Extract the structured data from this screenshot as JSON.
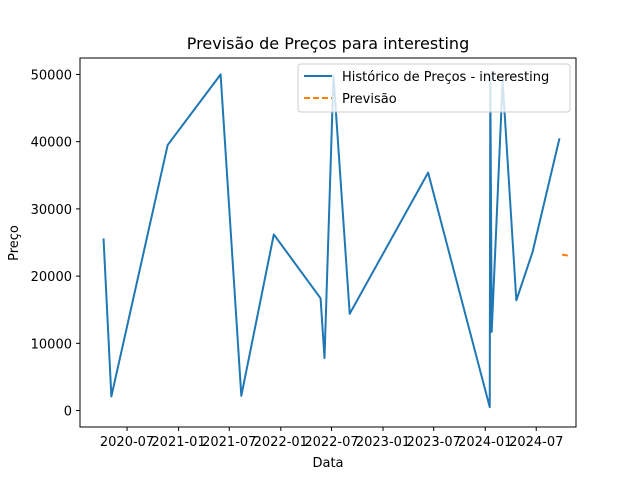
{
  "chart_data": {
    "type": "line",
    "title": "Previsão de Preços para interesting",
    "xlabel": "Data",
    "ylabel": "Preço",
    "xlim": [
      "2020-01-15",
      "2024-11-20"
    ],
    "ylim": [
      -2450,
      52450
    ],
    "x_ticks": [
      {
        "date": "2020-07-01",
        "label": "2020-07"
      },
      {
        "date": "2021-01-01",
        "label": "2021-01"
      },
      {
        "date": "2021-07-01",
        "label": "2021-07"
      },
      {
        "date": "2022-01-01",
        "label": "2022-01"
      },
      {
        "date": "2022-07-01",
        "label": "2022-07"
      },
      {
        "date": "2023-01-01",
        "label": "2023-01"
      },
      {
        "date": "2023-07-01",
        "label": "2023-07"
      },
      {
        "date": "2024-01-01",
        "label": "2024-01"
      },
      {
        "date": "2024-07-01",
        "label": "2024-07"
      }
    ],
    "y_ticks": [
      {
        "value": 0,
        "label": "0"
      },
      {
        "value": 10000,
        "label": "10000"
      },
      {
        "value": 20000,
        "label": "20000"
      },
      {
        "value": 30000,
        "label": "30000"
      },
      {
        "value": 40000,
        "label": "40000"
      },
      {
        "value": 50000,
        "label": "50000"
      }
    ],
    "series": [
      {
        "name": "Histórico de Preços - interesting",
        "color": "#1f77b4",
        "style": "solid",
        "points": [
          {
            "x": "2020-04-08",
            "y": 25600
          },
          {
            "x": "2020-05-06",
            "y": 2100
          },
          {
            "x": "2020-11-23",
            "y": 39500
          },
          {
            "x": "2021-05-31",
            "y": 50000
          },
          {
            "x": "2021-08-13",
            "y": 2200
          },
          {
            "x": "2021-12-07",
            "y": 26200
          },
          {
            "x": "2022-05-23",
            "y": 16700
          },
          {
            "x": "2022-06-06",
            "y": 7800
          },
          {
            "x": "2022-07-08",
            "y": 49800
          },
          {
            "x": "2022-09-04",
            "y": 14400
          },
          {
            "x": "2023-06-11",
            "y": 35400
          },
          {
            "x": "2024-01-17",
            "y": 500
          },
          {
            "x": "2024-01-19",
            "y": 49800
          },
          {
            "x": "2024-01-24",
            "y": 11700
          },
          {
            "x": "2024-03-03",
            "y": 49000
          },
          {
            "x": "2024-04-21",
            "y": 16400
          },
          {
            "x": "2024-06-18",
            "y": 23600
          },
          {
            "x": "2024-09-22",
            "y": 40500
          }
        ]
      },
      {
        "name": "Previsão",
        "color": "#ff7f0e",
        "style": "dashed",
        "points": [
          {
            "x": "2024-10-01",
            "y": 23200
          },
          {
            "x": "2024-10-15",
            "y": 23100
          },
          {
            "x": "2024-10-31",
            "y": 23000
          }
        ]
      }
    ],
    "legend": {
      "placement": "top-right"
    },
    "grid": false
  }
}
